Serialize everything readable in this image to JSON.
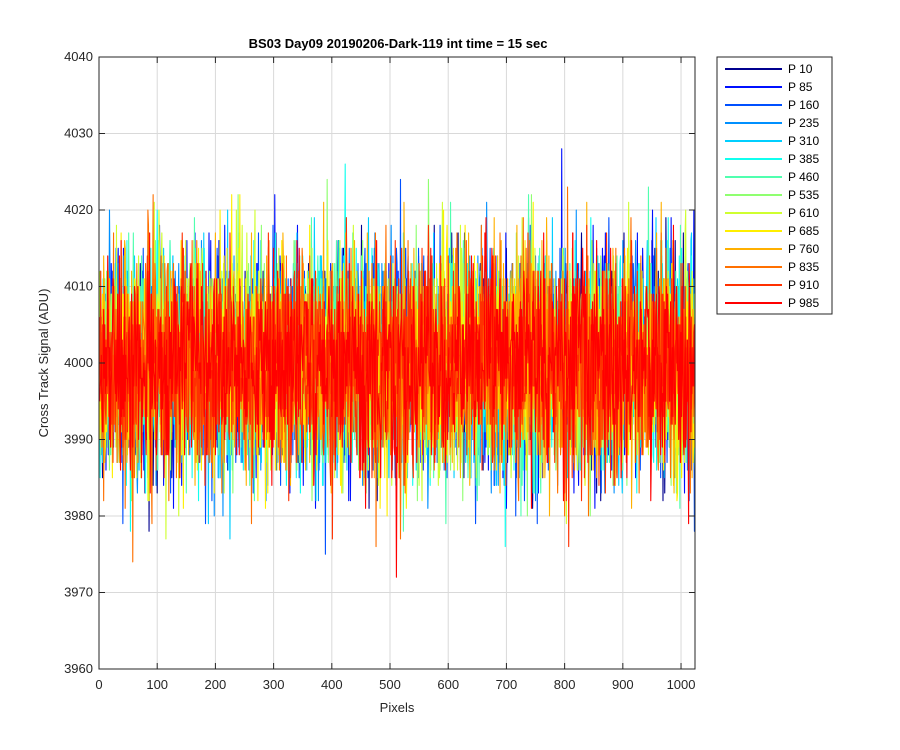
{
  "chart_data": {
    "type": "line",
    "title": "BS03 Day09 20190206-Dark-119 int time = 15 sec",
    "xlabel": "Pixels",
    "ylabel": "Cross Track Signal (ADU)",
    "xlim": [
      0,
      1024
    ],
    "ylim": [
      3960,
      4040
    ],
    "xticks": [
      0,
      100,
      200,
      300,
      400,
      500,
      600,
      700,
      800,
      900,
      1000
    ],
    "yticks": [
      3960,
      3970,
      3980,
      3990,
      4000,
      4010,
      4020,
      4030,
      4040
    ],
    "grid": true,
    "legend_position": "outside-top-right",
    "noise_model": {
      "mean": 4000,
      "std": 7,
      "n_points": 1024
    },
    "series": [
      {
        "name": "P 10",
        "color": "#00008f"
      },
      {
        "name": "P 85",
        "color": "#0010ff"
      },
      {
        "name": "P 160",
        "color": "#0050ff"
      },
      {
        "name": "P 235",
        "color": "#0090ff"
      },
      {
        "name": "P 310",
        "color": "#00cfff"
      },
      {
        "name": "P 385",
        "color": "#10ffef"
      },
      {
        "name": "P 460",
        "color": "#50ffaf"
      },
      {
        "name": "P 535",
        "color": "#8fff70"
      },
      {
        "name": "P 610",
        "color": "#cfff30"
      },
      {
        "name": "P 685",
        "color": "#ffef00"
      },
      {
        "name": "P 760",
        "color": "#ffb000"
      },
      {
        "name": "P 835",
        "color": "#ff7000"
      },
      {
        "name": "P 910",
        "color": "#ff3000"
      },
      {
        "name": "P 985",
        "color": "#ff0000"
      }
    ]
  }
}
